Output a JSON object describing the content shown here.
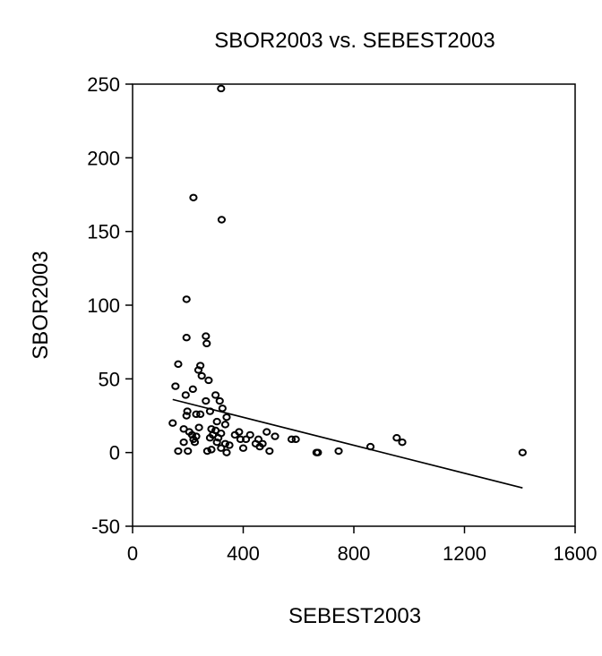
{
  "chart_data": {
    "type": "scatter",
    "title": "SBOR2003 vs. SEBEST2003",
    "xlabel": "SEBEST2003",
    "ylabel": "SBOR2003",
    "xlim": [
      0,
      1600
    ],
    "ylim": [
      -50,
      250
    ],
    "xticks": [
      0,
      400,
      800,
      1200,
      1600
    ],
    "yticks": [
      -50,
      0,
      50,
      100,
      150,
      200,
      250
    ],
    "xtick_labels": [
      "0",
      "400",
      "800",
      "1200",
      "1600"
    ],
    "ytick_labels": [
      "-50",
      "0",
      "50",
      "100",
      "150",
      "200",
      "250"
    ],
    "grid": false,
    "series": [
      {
        "marker": "circle-open",
        "color": "#000000",
        "points": [
          [
            320,
            247
          ],
          [
            220,
            173
          ],
          [
            322,
            158
          ],
          [
            195,
            104
          ],
          [
            195,
            78
          ],
          [
            265,
            79
          ],
          [
            268,
            74
          ],
          [
            165,
            60
          ],
          [
            245,
            59
          ],
          [
            238,
            56
          ],
          [
            250,
            52
          ],
          [
            275,
            49
          ],
          [
            155,
            45
          ],
          [
            218,
            43
          ],
          [
            192,
            39
          ],
          [
            300,
            39
          ],
          [
            265,
            35
          ],
          [
            315,
            35
          ],
          [
            325,
            30
          ],
          [
            198,
            28
          ],
          [
            280,
            28
          ],
          [
            195,
            25
          ],
          [
            230,
            26
          ],
          [
            245,
            26
          ],
          [
            340,
            24
          ],
          [
            145,
            20
          ],
          [
            305,
            21
          ],
          [
            335,
            19
          ],
          [
            185,
            16
          ],
          [
            240,
            17
          ],
          [
            285,
            16
          ],
          [
            205,
            14
          ],
          [
            300,
            15
          ],
          [
            385,
            14
          ],
          [
            485,
            14
          ],
          [
            320,
            13
          ],
          [
            215,
            12
          ],
          [
            230,
            11
          ],
          [
            290,
            12
          ],
          [
            370,
            12
          ],
          [
            425,
            12
          ],
          [
            515,
            11
          ],
          [
            220,
            9
          ],
          [
            280,
            10
          ],
          [
            310,
            10
          ],
          [
            390,
            9
          ],
          [
            410,
            9
          ],
          [
            455,
            9
          ],
          [
            575,
            9
          ],
          [
            590,
            9
          ],
          [
            185,
            7
          ],
          [
            225,
            7
          ],
          [
            305,
            7
          ],
          [
            335,
            6
          ],
          [
            350,
            5
          ],
          [
            445,
            6
          ],
          [
            470,
            6
          ],
          [
            460,
            4
          ],
          [
            320,
            3
          ],
          [
            400,
            3
          ],
          [
            955,
            10
          ],
          [
            975,
            7
          ],
          [
            860,
            4
          ],
          [
            165,
            1
          ],
          [
            200,
            1
          ],
          [
            270,
            1
          ],
          [
            285,
            2
          ],
          [
            340,
            0
          ],
          [
            495,
            1
          ],
          [
            665,
            0
          ],
          [
            670,
            0
          ],
          [
            745,
            1
          ],
          [
            1410,
            0
          ]
        ]
      },
      {
        "type": "line",
        "color": "#000000",
        "points": [
          [
            145,
            36
          ],
          [
            1410,
            -24
          ]
        ]
      }
    ]
  }
}
